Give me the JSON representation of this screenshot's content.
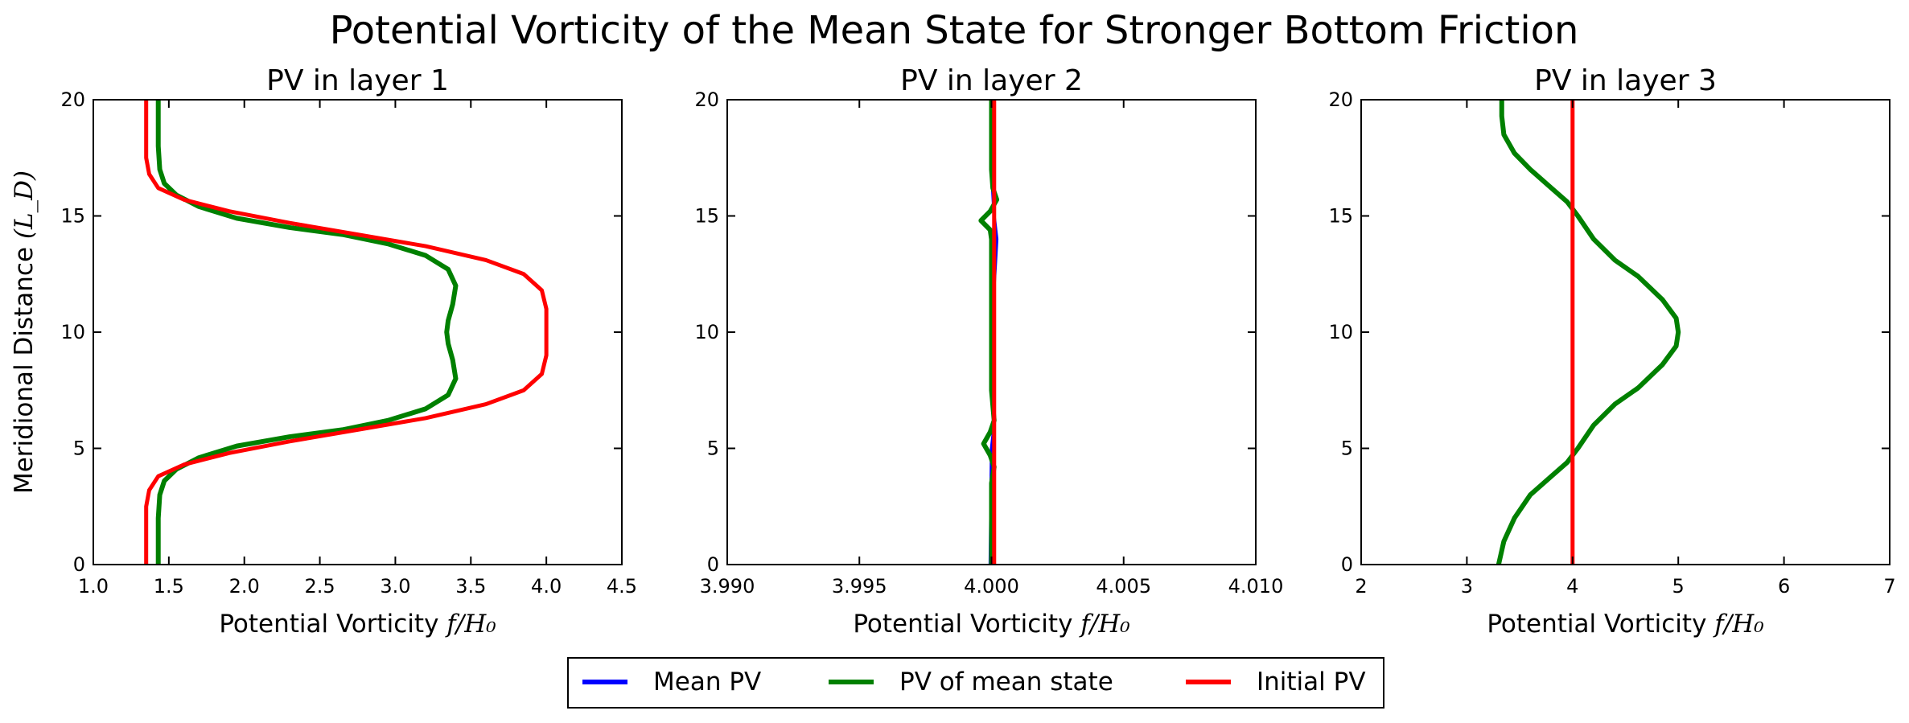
{
  "page": {
    "suptitle": "Potential Vorticity of the Mean State for Stronger Bottom Friction"
  },
  "chart_data": [
    {
      "type": "line",
      "title": "PV in layer 1",
      "xlabel": "Potential Vorticity f/H₀",
      "ylabel": "Meridional Distance (L_D)",
      "xlim": [
        1.0,
        4.5
      ],
      "ylim": [
        0,
        20
      ],
      "xticks": [
        1.0,
        1.5,
        2.0,
        2.5,
        3.0,
        3.5,
        4.0,
        4.5
      ],
      "xtick_labels": [
        "1.0",
        "1.5",
        "2.0",
        "2.5",
        "3.0",
        "3.5",
        "4.0",
        "4.5"
      ],
      "yticks": [
        0,
        5,
        10,
        15,
        20
      ],
      "ytick_labels": [
        "0",
        "5",
        "10",
        "15",
        "20"
      ],
      "grid": false,
      "series": [
        {
          "name": "Mean PV",
          "color": "#0000ff",
          "points": [
            [
              1.43,
              0
            ],
            [
              1.43,
              2
            ],
            [
              1.44,
              3
            ],
            [
              1.47,
              3.6
            ],
            [
              1.55,
              4.1
            ],
            [
              1.7,
              4.6
            ],
            [
              1.95,
              5.1
            ],
            [
              2.3,
              5.5
            ],
            [
              2.65,
              5.8
            ],
            [
              2.95,
              6.2
            ],
            [
              3.2,
              6.7
            ],
            [
              3.35,
              7.3
            ],
            [
              3.4,
              8
            ],
            [
              3.38,
              8.8
            ],
            [
              3.35,
              9.5
            ],
            [
              3.34,
              10
            ],
            [
              3.35,
              10.5
            ],
            [
              3.38,
              11.2
            ],
            [
              3.4,
              12
            ],
            [
              3.35,
              12.7
            ],
            [
              3.2,
              13.3
            ],
            [
              2.95,
              13.8
            ],
            [
              2.65,
              14.2
            ],
            [
              2.3,
              14.5
            ],
            [
              1.95,
              14.9
            ],
            [
              1.7,
              15.4
            ],
            [
              1.55,
              15.9
            ],
            [
              1.47,
              16.4
            ],
            [
              1.44,
              17
            ],
            [
              1.43,
              18
            ],
            [
              1.43,
              20
            ]
          ]
        },
        {
          "name": "PV of mean state",
          "color": "#008000",
          "points": [
            [
              1.43,
              0
            ],
            [
              1.43,
              2
            ],
            [
              1.44,
              3
            ],
            [
              1.47,
              3.6
            ],
            [
              1.55,
              4.1
            ],
            [
              1.7,
              4.6
            ],
            [
              1.95,
              5.1
            ],
            [
              2.3,
              5.5
            ],
            [
              2.65,
              5.8
            ],
            [
              2.95,
              6.2
            ],
            [
              3.2,
              6.7
            ],
            [
              3.35,
              7.3
            ],
            [
              3.4,
              8
            ],
            [
              3.38,
              8.8
            ],
            [
              3.35,
              9.5
            ],
            [
              3.34,
              10
            ],
            [
              3.35,
              10.5
            ],
            [
              3.38,
              11.2
            ],
            [
              3.4,
              12
            ],
            [
              3.35,
              12.7
            ],
            [
              3.2,
              13.3
            ],
            [
              2.95,
              13.8
            ],
            [
              2.65,
              14.2
            ],
            [
              2.3,
              14.5
            ],
            [
              1.95,
              14.9
            ],
            [
              1.7,
              15.4
            ],
            [
              1.55,
              15.9
            ],
            [
              1.47,
              16.4
            ],
            [
              1.44,
              17
            ],
            [
              1.43,
              18
            ],
            [
              1.43,
              20
            ]
          ]
        },
        {
          "name": "Initial PV",
          "color": "#ff0000",
          "points": [
            [
              1.35,
              0
            ],
            [
              1.35,
              2.5
            ],
            [
              1.37,
              3.2
            ],
            [
              1.43,
              3.8
            ],
            [
              1.6,
              4.3
            ],
            [
              1.9,
              4.8
            ],
            [
              2.3,
              5.3
            ],
            [
              2.75,
              5.8
            ],
            [
              3.2,
              6.3
            ],
            [
              3.6,
              6.9
            ],
            [
              3.85,
              7.5
            ],
            [
              3.97,
              8.2
            ],
            [
              4.0,
              9
            ],
            [
              4.0,
              11
            ],
            [
              3.97,
              11.8
            ],
            [
              3.85,
              12.5
            ],
            [
              3.6,
              13.1
            ],
            [
              3.2,
              13.7
            ],
            [
              2.75,
              14.2
            ],
            [
              2.3,
              14.7
            ],
            [
              1.9,
              15.2
            ],
            [
              1.6,
              15.7
            ],
            [
              1.43,
              16.2
            ],
            [
              1.37,
              16.8
            ],
            [
              1.35,
              17.5
            ],
            [
              1.35,
              20
            ]
          ]
        }
      ]
    },
    {
      "type": "line",
      "title": "PV in layer 2",
      "xlabel": "Potential Vorticity f/H₀",
      "ylabel": "",
      "xlim": [
        3.99,
        4.01
      ],
      "ylim": [
        0,
        20
      ],
      "xticks": [
        3.99,
        3.995,
        4.0,
        4.005,
        4.01
      ],
      "xtick_labels": [
        "3.990",
        "3.995",
        "4.000",
        "4.005",
        "4.010"
      ],
      "yticks": [
        0,
        5,
        10,
        15,
        20
      ],
      "ytick_labels": [
        "0",
        "5",
        "10",
        "15",
        "20"
      ],
      "grid": false,
      "series": [
        {
          "name": "Mean PV",
          "color": "#0000ff",
          "points": [
            [
              3.99995,
              0
            ],
            [
              3.99998,
              3
            ],
            [
              4.0,
              5
            ],
            [
              4.0001,
              6
            ],
            [
              4.00005,
              8
            ],
            [
              4.0,
              10
            ],
            [
              4.0001,
              12
            ],
            [
              4.0002,
              14
            ],
            [
              4.0001,
              15
            ],
            [
              4.0,
              17
            ],
            [
              3.99998,
              20
            ]
          ]
        },
        {
          "name": "PV of mean state",
          "color": "#008000",
          "points": [
            [
              4.0,
              0
            ],
            [
              4.0,
              3.5
            ],
            [
              4.0001,
              4.2
            ],
            [
              3.99995,
              4.7
            ],
            [
              3.9997,
              5.2
            ],
            [
              3.99995,
              5.7
            ],
            [
              4.0001,
              6.2
            ],
            [
              4.0,
              7.5
            ],
            [
              4.0,
              14
            ],
            [
              3.99995,
              14.4
            ],
            [
              3.9996,
              14.8
            ],
            [
              3.99995,
              15.2
            ],
            [
              4.0002,
              15.7
            ],
            [
              4.00005,
              16.2
            ],
            [
              4.0,
              17
            ],
            [
              4.0,
              20
            ]
          ]
        },
        {
          "name": "Initial PV",
          "color": "#ff0000",
          "points": [
            [
              4.0001,
              0
            ],
            [
              4.0001,
              20
            ]
          ]
        }
      ]
    },
    {
      "type": "line",
      "title": "PV in layer 3",
      "xlabel": "Potential Vorticity f/H₀",
      "ylabel": "",
      "xlim": [
        2,
        7
      ],
      "ylim": [
        0,
        20
      ],
      "xticks": [
        2,
        3,
        4,
        5,
        6,
        7
      ],
      "xtick_labels": [
        "2",
        "3",
        "4",
        "5",
        "6",
        "7"
      ],
      "yticks": [
        0,
        5,
        10,
        15,
        20
      ],
      "ytick_labels": [
        "0",
        "5",
        "10",
        "15",
        "20"
      ],
      "grid": false,
      "series": [
        {
          "name": "Mean PV",
          "color": "#0000ff",
          "points": [
            [
              3.3,
              0
            ],
            [
              3.35,
              1
            ],
            [
              3.45,
              2
            ],
            [
              3.6,
              3
            ],
            [
              3.8,
              3.8
            ],
            [
              3.95,
              4.4
            ],
            [
              4.05,
              5
            ],
            [
              4.2,
              6
            ],
            [
              4.4,
              6.9
            ],
            [
              4.62,
              7.6
            ],
            [
              4.85,
              8.6
            ],
            [
              4.98,
              9.4
            ],
            [
              5.0,
              10
            ],
            [
              4.98,
              10.6
            ],
            [
              4.85,
              11.4
            ],
            [
              4.62,
              12.4
            ],
            [
              4.4,
              13.1
            ],
            [
              4.2,
              14
            ],
            [
              4.05,
              15
            ],
            [
              3.95,
              15.6
            ],
            [
              3.8,
              16.2
            ],
            [
              3.6,
              17
            ],
            [
              3.45,
              17.7
            ],
            [
              3.35,
              18.5
            ],
            [
              3.33,
              19.3
            ],
            [
              3.33,
              20
            ]
          ]
        },
        {
          "name": "PV of mean state",
          "color": "#008000",
          "points": [
            [
              3.3,
              0
            ],
            [
              3.35,
              1
            ],
            [
              3.45,
              2
            ],
            [
              3.6,
              3
            ],
            [
              3.8,
              3.8
            ],
            [
              3.95,
              4.4
            ],
            [
              4.05,
              5
            ],
            [
              4.2,
              6
            ],
            [
              4.4,
              6.9
            ],
            [
              4.62,
              7.6
            ],
            [
              4.85,
              8.6
            ],
            [
              4.98,
              9.4
            ],
            [
              5.0,
              10
            ],
            [
              4.98,
              10.6
            ],
            [
              4.85,
              11.4
            ],
            [
              4.62,
              12.4
            ],
            [
              4.4,
              13.1
            ],
            [
              4.2,
              14
            ],
            [
              4.05,
              15
            ],
            [
              3.95,
              15.6
            ],
            [
              3.8,
              16.2
            ],
            [
              3.6,
              17
            ],
            [
              3.45,
              17.7
            ],
            [
              3.35,
              18.5
            ],
            [
              3.33,
              19.3
            ],
            [
              3.33,
              20
            ]
          ]
        },
        {
          "name": "Initial PV",
          "color": "#ff0000",
          "points": [
            [
              4.0,
              0
            ],
            [
              4.0,
              20
            ]
          ]
        }
      ]
    }
  ],
  "legend": {
    "placement": "bottom-center",
    "entries": [
      {
        "label": "Mean PV",
        "color": "#0000ff"
      },
      {
        "label": "PV of mean state",
        "color": "#008000"
      },
      {
        "label": "Initial PV",
        "color": "#ff0000"
      }
    ]
  }
}
